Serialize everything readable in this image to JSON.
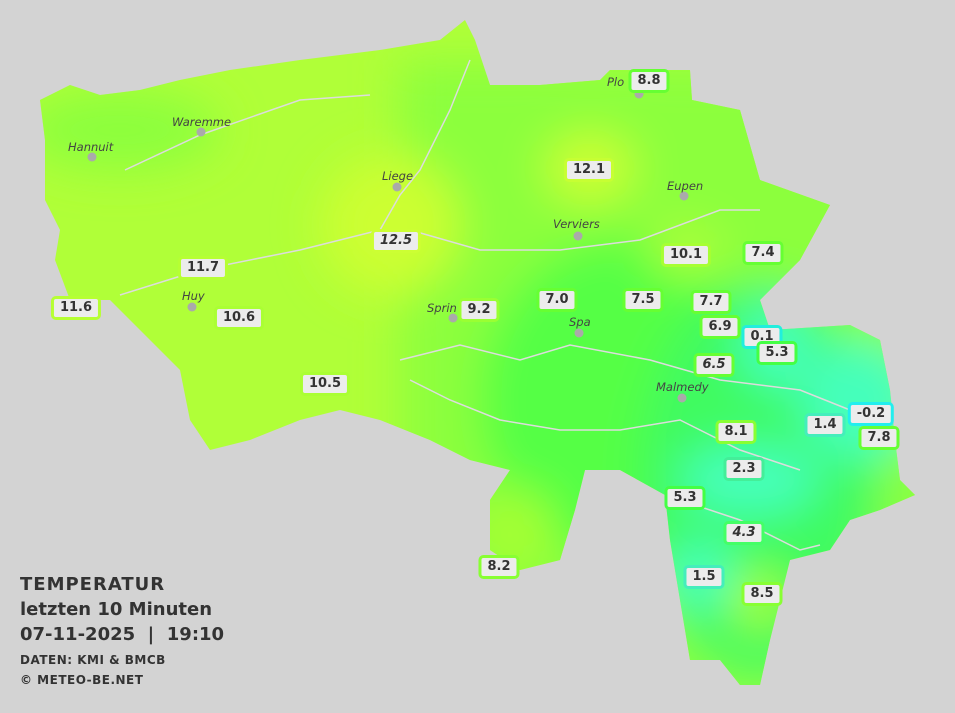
{
  "legend": {
    "title": "TEMPERATUR",
    "period": "letzten 10 Minuten",
    "datetime": "07-11-2025  |  19:10",
    "source": "DATEN: KMI & BMCB",
    "copyright": "© METEO-BE.NET"
  },
  "cities": [
    "Waremme",
    "Hannuit",
    "Liege",
    "Huy",
    "Sprin",
    "Verviers",
    "Spa",
    "Malmedy",
    "Eupen",
    "Plo"
  ],
  "stations": [
    "8.8",
    "12.1",
    "12.5",
    "11.7",
    "11.6",
    "10.6",
    "9.2",
    "7.0",
    "7.5",
    "7.7",
    "10.1",
    "7.4",
    "6.9",
    "0.1",
    "5.3",
    "6.5",
    "10.5",
    "1.4",
    "-0.2",
    "7.8",
    "8.1",
    "2.3",
    "5.3",
    "4.3",
    "1.5",
    "8.5",
    "8.2"
  ],
  "colors": {
    "background": "#d3d3d3",
    "warm": "#ccff33",
    "mild": "#a6ff33",
    "cool": "#55ff44",
    "cold": "#44ffbb",
    "label_border_default": "#66ff33",
    "label_border_cold": "#22eedd"
  }
}
